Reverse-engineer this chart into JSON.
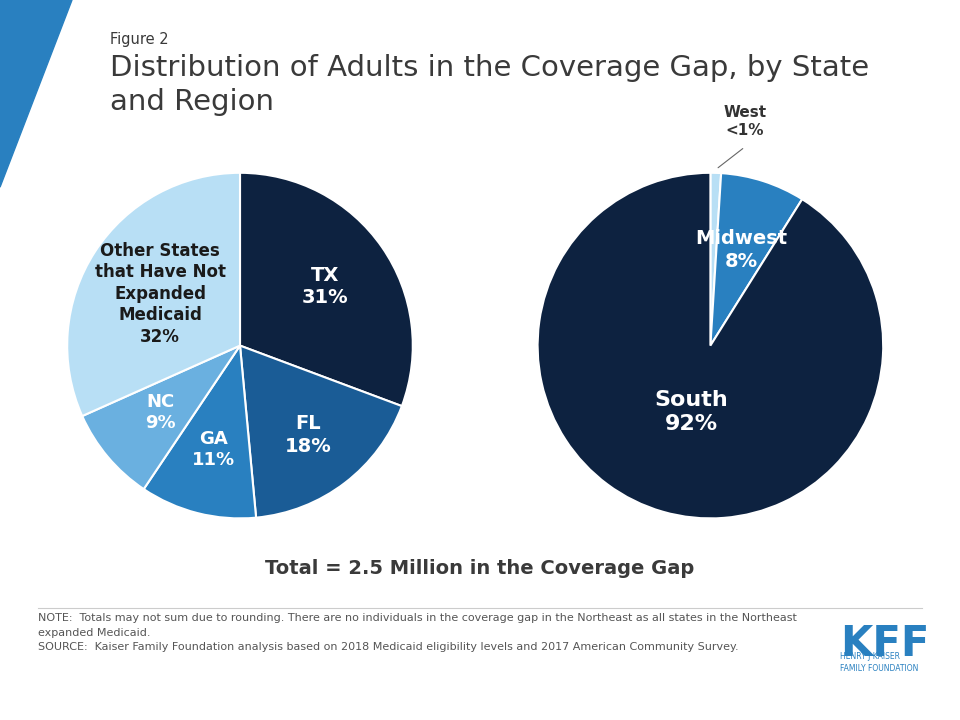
{
  "figure_label": "Figure 2",
  "title": "Distribution of Adults in the Coverage Gap, by State\nand Region",
  "subtitle": "Total = 2.5 Million in the Coverage Gap",
  "note_line1": "NOTE:  Totals may not sum due to rounding. There are no individuals in the coverage gap in the Northeast as all states in the Northeast",
  "note_line2": "expanded Medicaid.",
  "source_line": "SOURCE:  Kaiser Family Foundation analysis based on 2018 Medicaid eligibility levels and 2017 American Community Survey.",
  "pie1_values": [
    31,
    18,
    11,
    9,
    32
  ],
  "pie1_colors": [
    "#0d2240",
    "#1a5c96",
    "#2980c0",
    "#6ab0e0",
    "#b8dff5"
  ],
  "pie1_labels_text": [
    "TX\n31%",
    "FL\n18%",
    "GA\n11%",
    "NC\n9%",
    "Other States\nthat Have Not\nExpanded\nMedicaid\n32%"
  ],
  "pie1_label_colors": [
    "white",
    "white",
    "white",
    "white",
    "#1a1a1a"
  ],
  "pie1_label_r": [
    0.6,
    0.65,
    0.62,
    0.6,
    0.55
  ],
  "pie1_startangle": 90,
  "pie2_values": [
    1,
    8,
    92
  ],
  "pie2_colors": [
    "#b8dff5",
    "#2980c0",
    "#0d2240"
  ],
  "pie2_labels_text": [
    "West\n<1%",
    "Midwest\n8%",
    "South\n92%"
  ],
  "pie2_label_colors": [
    "#1a1a1a",
    "white",
    "white"
  ],
  "pie2_startangle": 90,
  "bg_color": "#ffffff",
  "text_color_dark": "#3a3a3a",
  "text_color_note": "#555555",
  "accent_color": "#2980c0",
  "triangle_color": "#2980c0"
}
